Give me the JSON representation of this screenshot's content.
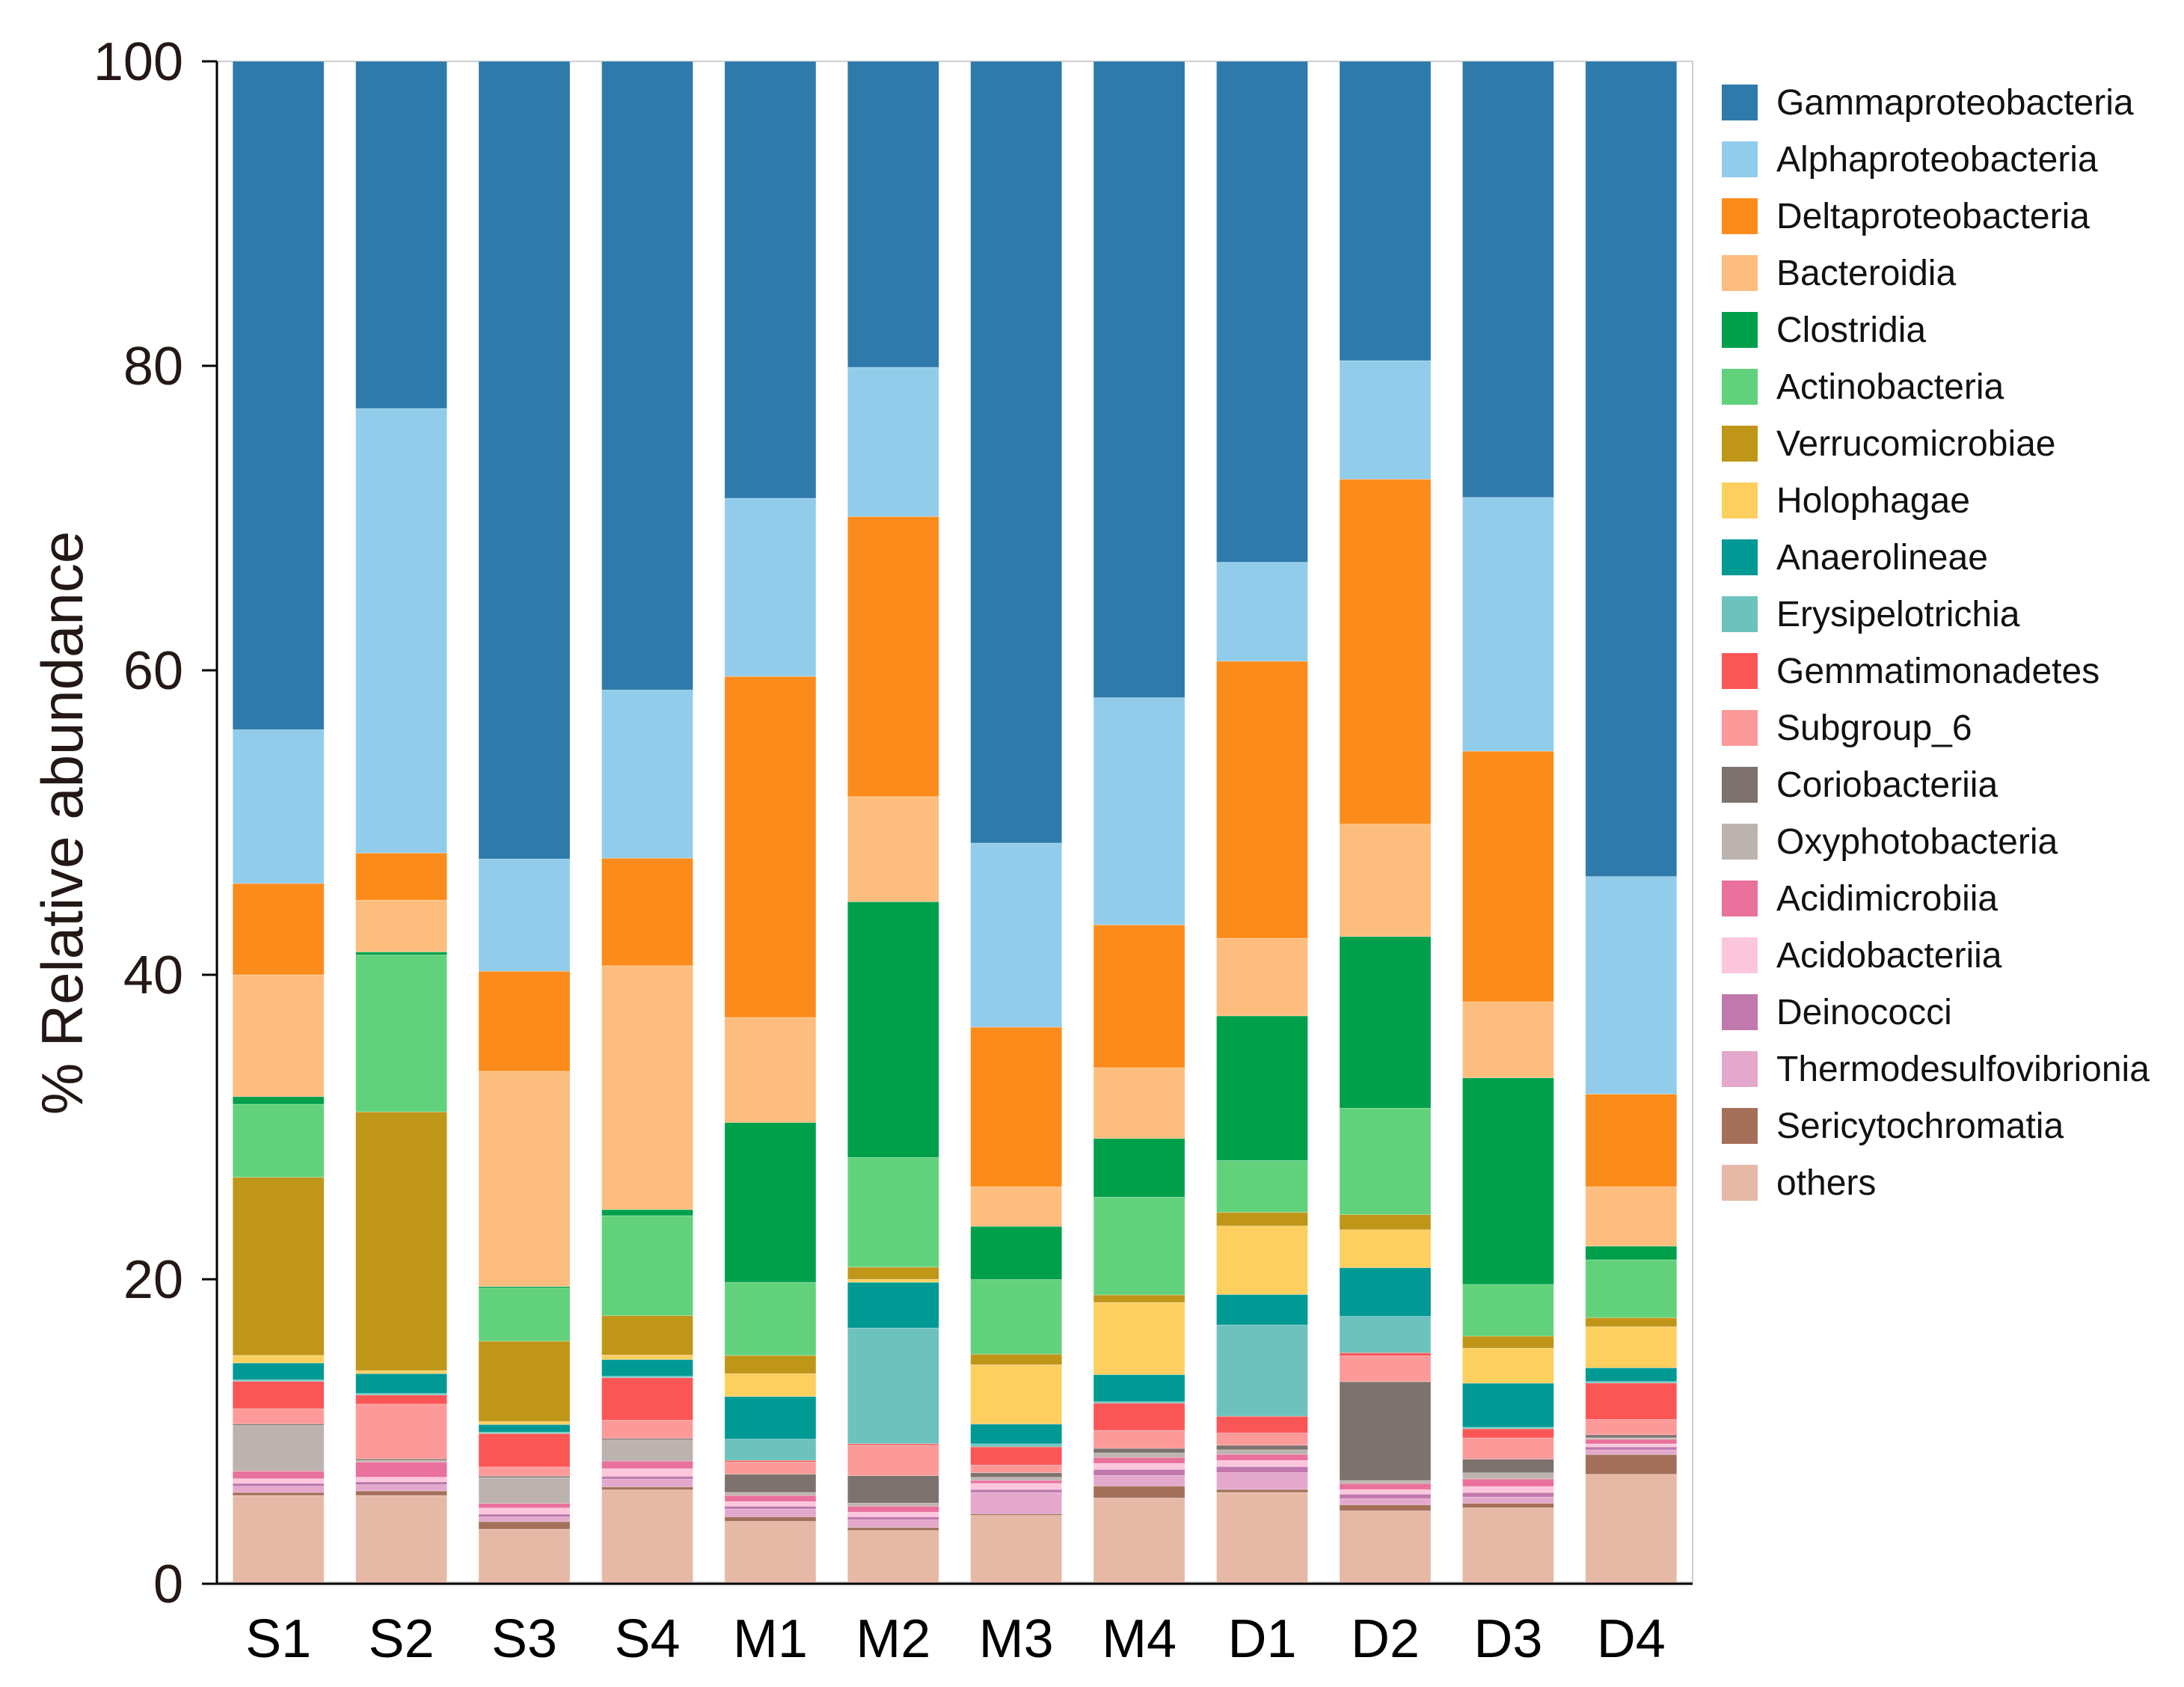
{
  "chart_data": {
    "type": "bar",
    "stacked": true,
    "title": "",
    "xlabel": "",
    "ylabel": "% Relative abundance",
    "ylim": [
      0,
      100
    ],
    "yticks": [
      "0",
      "20",
      "40",
      "60",
      "80",
      "100"
    ],
    "legend_position": "right",
    "categories": [
      "S1",
      "S2",
      "S3",
      "S4",
      "M1",
      "M2",
      "M3",
      "M4",
      "D1",
      "D2",
      "D3",
      "D4"
    ],
    "series": [
      {
        "name": "others",
        "color": "#E5B9A6",
        "values": [
          5.8,
          5.8,
          3.6,
          6.2,
          4.1,
          3.5,
          4.5,
          5.7,
          6.0,
          4.8,
          5.0,
          7.2
        ]
      },
      {
        "name": "Sericytochromatia",
        "color": "#A5705A",
        "values": [
          0.2,
          0.3,
          0.5,
          0.2,
          0.3,
          0.2,
          0.1,
          0.8,
          0.2,
          0.4,
          0.3,
          1.3
        ]
      },
      {
        "name": "Thermodesulfovibrionia",
        "color": "#E4A8CD",
        "values": [
          0.4,
          0.4,
          0.3,
          0.5,
          0.5,
          0.5,
          1.4,
          0.7,
          1.1,
          0.4,
          0.4,
          0.3
        ]
      },
      {
        "name": "Deinococci",
        "color": "#C178AC",
        "values": [
          0.2,
          0.2,
          0.2,
          0.2,
          0.2,
          0.2,
          0.2,
          0.4,
          0.4,
          0.3,
          0.3,
          0.2
        ]
      },
      {
        "name": "Acidobacteriia",
        "color": "#FCC6DC",
        "values": [
          0.3,
          0.3,
          0.4,
          0.5,
          0.3,
          0.3,
          0.4,
          0.4,
          0.4,
          0.3,
          0.4,
          0.2
        ]
      },
      {
        "name": "Acidimicrobiia",
        "color": "#E9719C",
        "values": [
          0.5,
          1.0,
          0.3,
          0.5,
          0.4,
          0.4,
          0.2,
          0.4,
          0.4,
          0.4,
          0.5,
          0.3
        ]
      },
      {
        "name": "Oxyphotobacteria",
        "color": "#BDB3AE",
        "values": [
          3.0,
          0.1,
          1.7,
          1.4,
          0.2,
          0.2,
          0.2,
          0.3,
          0.3,
          0.2,
          0.4,
          0.1
        ]
      },
      {
        "name": "Coriobacteriia",
        "color": "#7D726D",
        "values": [
          0.1,
          0.1,
          0.1,
          0.1,
          1.2,
          1.8,
          0.3,
          0.3,
          0.3,
          6.5,
          0.9,
          0.2
        ]
      },
      {
        "name": "Subgroup_6",
        "color": "#FB9A99",
        "values": [
          1.0,
          3.6,
          0.6,
          1.2,
          0.8,
          2.0,
          0.5,
          1.2,
          0.8,
          1.7,
          1.4,
          1.0
        ]
      },
      {
        "name": "Gemmatimonadetes",
        "color": "#FA5656",
        "values": [
          1.8,
          0.6,
          2.2,
          2.8,
          0.1,
          0.1,
          1.2,
          1.8,
          1.1,
          0.2,
          0.6,
          2.4
        ]
      },
      {
        "name": "Erysipelotrichia",
        "color": "#6EC2BD",
        "values": [
          0.1,
          0.1,
          0.1,
          0.1,
          1.4,
          7.6,
          0.2,
          0.1,
          6.0,
          2.4,
          0.1,
          0.1
        ]
      },
      {
        "name": "Anaerolineae",
        "color": "#009994",
        "values": [
          1.1,
          1.3,
          0.5,
          1.1,
          2.8,
          3.0,
          1.3,
          1.8,
          2.0,
          3.2,
          2.9,
          0.9
        ]
      },
      {
        "name": "Holophagae",
        "color": "#FDCF5F",
        "values": [
          0.5,
          0.2,
          0.2,
          0.3,
          1.5,
          0.2,
          3.9,
          4.8,
          4.5,
          2.5,
          2.3,
          2.7
        ]
      },
      {
        "name": "Verrucomicrobiae",
        "color": "#C09619",
        "values": [
          11.7,
          17.0,
          5.3,
          2.6,
          1.2,
          0.8,
          0.7,
          0.5,
          0.9,
          1.0,
          0.8,
          0.6
        ]
      },
      {
        "name": "Actinobacteria",
        "color": "#61D27B",
        "values": [
          4.8,
          10.3,
          3.5,
          6.6,
          4.8,
          7.2,
          4.9,
          6.5,
          3.4,
          7.0,
          3.4,
          3.8
        ]
      },
      {
        "name": "Clostridia",
        "color": "#00A04A",
        "values": [
          0.5,
          0.2,
          0.1,
          0.4,
          10.5,
          16.8,
          3.5,
          3.9,
          9.5,
          11.3,
          13.6,
          0.9
        ]
      },
      {
        "name": "Bacteroidia",
        "color": "#FDBD7E",
        "values": [
          8.0,
          3.4,
          14.2,
          16.1,
          6.9,
          6.9,
          2.6,
          4.7,
          5.1,
          7.4,
          5.0,
          3.9
        ]
      },
      {
        "name": "Deltaproteobacteria",
        "color": "#FB8C1C",
        "values": [
          6.0,
          3.1,
          6.6,
          7.1,
          22.4,
          18.4,
          10.5,
          9.5,
          18.2,
          22.7,
          16.5,
          6.1
        ]
      },
      {
        "name": "Alphaproteobacteria",
        "color": "#92CCEB",
        "values": [
          10.1,
          29.2,
          7.4,
          11.1,
          11.7,
          9.8,
          12.1,
          15.1,
          6.5,
          7.8,
          16.7,
          14.3
        ]
      },
      {
        "name": "Gammaproteobacteria",
        "color": "#2E7AAB",
        "values": [
          43.9,
          22.8,
          52.6,
          41.5,
          28.7,
          20.1,
          51.4,
          42.3,
          32.9,
          19.7,
          28.7,
          53.6
        ]
      }
    ],
    "legend_order": [
      "Gammaproteobacteria",
      "Alphaproteobacteria",
      "Deltaproteobacteria",
      "Bacteroidia",
      "Clostridia",
      "Actinobacteria",
      "Verrucomicrobiae",
      "Holophagae",
      "Anaerolineae",
      "Erysipelotrichia",
      "Gemmatimonadetes",
      "Subgroup_6",
      "Coriobacteriia",
      "Oxyphotobacteria",
      "Acidimicrobiia",
      "Acidobacteriia",
      "Deinococci",
      "Thermodesulfovibrionia",
      "Sericytochromatia",
      "others"
    ]
  }
}
